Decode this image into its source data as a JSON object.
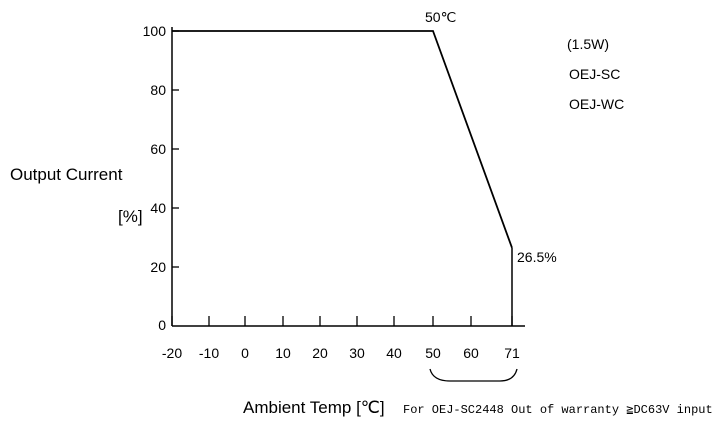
{
  "chart_data": {
    "type": "line",
    "title": "",
    "xlabel": "Ambient Temp [℃]",
    "ylabel_line1": "Output Current",
    "ylabel_line2": "[%]",
    "xlim": [
      -20,
      71
    ],
    "ylim": [
      0,
      100
    ],
    "x_ticks": [
      -20,
      -10,
      0,
      10,
      20,
      30,
      40,
      50,
      60,
      71
    ],
    "x_tick_labels": [
      "-20",
      "-10",
      "0",
      "10",
      "20",
      "30",
      "40",
      "50",
      "60",
      "71"
    ],
    "y_ticks": [
      0,
      20,
      40,
      60,
      80,
      100
    ],
    "y_tick_labels": [
      "0",
      "20",
      "40",
      "60",
      "80",
      "100"
    ],
    "series": [
      {
        "x": [
          -20,
          50,
          71
        ],
        "y": [
          100,
          100,
          26.5
        ]
      }
    ],
    "annotations": {
      "knee_label": "50℃",
      "end_label": "26.5%"
    },
    "legend": [
      "(1.5W)",
      "OEJ-SC",
      "OEJ-WC"
    ],
    "note": "For OEJ-SC2448 Out of warranty ≧DC63V input",
    "grid": false,
    "colors": {
      "line": "#000000",
      "axis": "#000000"
    }
  }
}
